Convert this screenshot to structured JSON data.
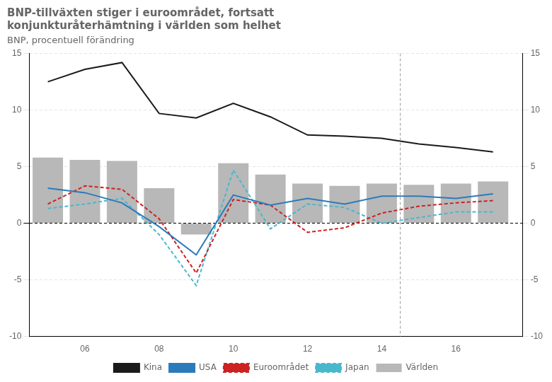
{
  "chart_data": {
    "type": "bar",
    "title": [
      "BNP-tillväxten stiger i euroområdet, fortsatt",
      "konjunkturåterhämtning i världen som helhet"
    ],
    "subtitle": "BNP, procentuell förändring",
    "x": [
      2005,
      2006,
      2007,
      2008,
      2009,
      2010,
      2011,
      2012,
      2013,
      2014,
      2015,
      2016,
      2017
    ],
    "series": [
      {
        "name": "Världen",
        "type": "bar",
        "color": "#b8b8b8",
        "values": [
          5.8,
          5.6,
          5.5,
          3.1,
          -1.0,
          5.3,
          4.3,
          3.5,
          3.3,
          3.5,
          3.4,
          3.5,
          3.7
        ]
      },
      {
        "name": "Kina",
        "type": "line",
        "line_style": "solid",
        "color": "#1a1a1a",
        "values": [
          12.5,
          13.6,
          14.2,
          9.7,
          9.3,
          10.6,
          9.4,
          7.8,
          7.7,
          7.5,
          7.0,
          6.7,
          6.3
        ]
      },
      {
        "name": "USA",
        "type": "line",
        "line_style": "solid",
        "color": "#2b7bba",
        "values": [
          3.1,
          2.7,
          1.8,
          -0.3,
          -2.8,
          2.5,
          1.6,
          2.2,
          1.7,
          2.4,
          2.4,
          2.2,
          2.6
        ]
      },
      {
        "name": "Euroområdet",
        "type": "line",
        "line_style": "dashed",
        "color": "#cc2222",
        "values": [
          1.7,
          3.3,
          3.0,
          0.4,
          -4.4,
          2.1,
          1.6,
          -0.8,
          -0.4,
          0.9,
          1.5,
          1.8,
          2.0
        ]
      },
      {
        "name": "Japan",
        "type": "line",
        "line_style": "dashed",
        "color": "#4ab8cc",
        "values": [
          1.3,
          1.7,
          2.2,
          -1.0,
          -5.5,
          4.7,
          -0.5,
          1.7,
          1.4,
          0.0,
          0.5,
          1.0,
          1.0
        ]
      }
    ],
    "xlim": [
      2004.5,
      2017.8
    ],
    "xticks": [
      {
        "value": 2006,
        "label": "06"
      },
      {
        "value": 2008,
        "label": "08"
      },
      {
        "value": 2010,
        "label": "10"
      },
      {
        "value": 2012,
        "label": "12"
      },
      {
        "value": 2014,
        "label": "14"
      },
      {
        "value": 2016,
        "label": "16"
      }
    ],
    "ylim": [
      -10,
      15
    ],
    "yticks": [
      -10,
      -5,
      0,
      5,
      10,
      15
    ],
    "y2lim": [
      -10,
      15
    ],
    "y2ticks": [
      -10,
      -5,
      0,
      5,
      10,
      15
    ],
    "vlines": [
      {
        "x": 2014.5,
        "color": "#999999",
        "line_style": "dashed"
      }
    ],
    "grid": "y",
    "legend": "bottom"
  }
}
